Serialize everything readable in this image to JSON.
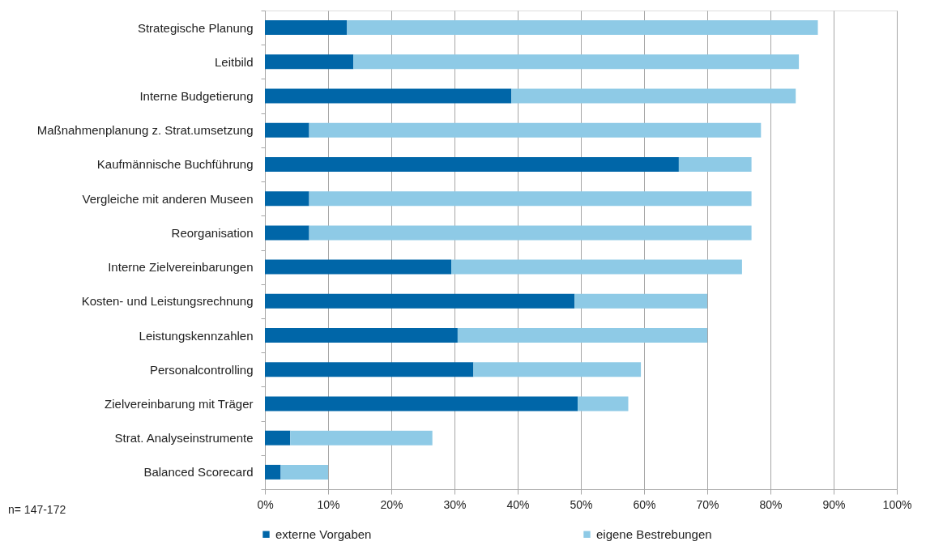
{
  "chart_data": {
    "type": "bar",
    "orientation": "horizontal",
    "stacked": true,
    "categories": [
      "Strategische Planung",
      "Leitbild",
      "Interne Budgetierung",
      "Maßnahmenplanung z. Strat.umsetzung",
      "Kaufmännische Buchführung",
      "Vergleiche mit anderen Museen",
      "Reorganisation",
      "Interne Zielvereinbarungen",
      "Kosten- und Leistungsrechnung",
      "Leistungskennzahlen",
      "Personalcontrolling",
      "Zielvereinbarung mit Träger",
      "Strat. Analyseinstrumente",
      "Balanced Scorecard"
    ],
    "series": [
      {
        "name": "externe Vorgaben",
        "color": "#0066a8",
        "values": [
          13,
          14,
          39,
          7,
          65.5,
          7,
          7,
          29.5,
          49,
          30.5,
          33,
          49.5,
          4,
          2.5
        ]
      },
      {
        "name": "eigene Bestrebungen",
        "color": "#8ecae6",
        "values": [
          74.5,
          70.5,
          45,
          71.5,
          11.5,
          70,
          70,
          46,
          21,
          39.5,
          26.5,
          8,
          22.5,
          7.5
        ]
      }
    ],
    "xlim": [
      0,
      100
    ],
    "xticks": [
      {
        "value": 0,
        "label": "0%"
      },
      {
        "value": 10,
        "label": "10%"
      },
      {
        "value": 20,
        "label": "20%"
      },
      {
        "value": 30,
        "label": "30%"
      },
      {
        "value": 40,
        "label": "40%"
      },
      {
        "value": 50,
        "label": "50%"
      },
      {
        "value": 60,
        "label": "60%"
      },
      {
        "value": 70,
        "label": "70%"
      },
      {
        "value": 80,
        "label": "80%"
      },
      {
        "value": 90,
        "label": "90%"
      },
      {
        "value": 100,
        "label": "100%"
      }
    ],
    "grid": "x",
    "legend": "bottom",
    "annotations": [
      "n= 147-172"
    ]
  }
}
